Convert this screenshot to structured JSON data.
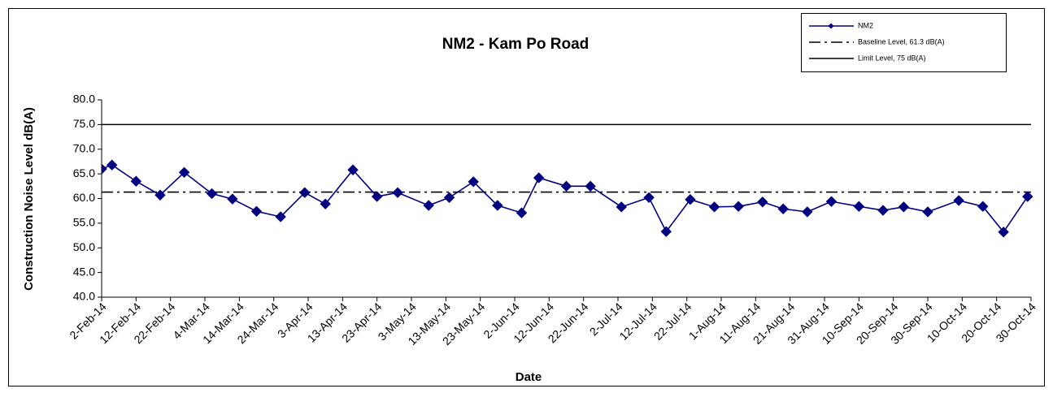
{
  "chart_data": {
    "type": "line",
    "title": "NM2 - Kam Po Road",
    "x_label": "Date",
    "y_label": "Construction Noise Level  dB(A)",
    "x": [
      "2014-02-02",
      "2014-02-05",
      "2014-02-12",
      "2014-02-19",
      "2014-02-26",
      "2014-03-06",
      "2014-03-12",
      "2014-03-19",
      "2014-03-26",
      "2014-04-02",
      "2014-04-08",
      "2014-04-16",
      "2014-04-23",
      "2014-04-29",
      "2014-05-08",
      "2014-05-14",
      "2014-05-21",
      "2014-05-28",
      "2014-06-04",
      "2014-06-09",
      "2014-06-17",
      "2014-06-24",
      "2014-07-03",
      "2014-07-11",
      "2014-07-16",
      "2014-07-23",
      "2014-07-30",
      "2014-08-06",
      "2014-08-13",
      "2014-08-19",
      "2014-08-26",
      "2014-09-02",
      "2014-09-10",
      "2014-09-17",
      "2014-09-23",
      "2014-09-30",
      "2014-10-09",
      "2014-10-16",
      "2014-10-22",
      "2014-10-29"
    ],
    "series": [
      {
        "name": "NM2",
        "color": "#000080",
        "marker": "diamond",
        "values": [
          66.0,
          66.8,
          63.5,
          60.7,
          65.3,
          61.0,
          59.9,
          57.4,
          56.3,
          61.2,
          58.9,
          65.8,
          60.4,
          61.2,
          58.6,
          60.2,
          63.4,
          58.6,
          57.1,
          64.2,
          62.5,
          62.5,
          58.3,
          60.2,
          53.3,
          59.8,
          58.3,
          58.4,
          59.3,
          57.9,
          57.3,
          59.4,
          58.4,
          57.6,
          58.3,
          57.3,
          59.6,
          58.4,
          53.2,
          60.4
        ]
      }
    ],
    "reference_lines": [
      {
        "name": "Baseline Level, 61.3 dB(A)",
        "value": 61.3,
        "color": "#000000",
        "style": "dashdot"
      },
      {
        "name": "Limit Level, 75 dB(A)",
        "value": 75,
        "color": "#000000",
        "style": "solid"
      }
    ],
    "xlim": [
      "2014-02-02",
      "2014-10-30"
    ],
    "xticks": [
      {
        "value": "2014-02-02",
        "label": "2-Feb-14"
      },
      {
        "value": "2014-02-12",
        "label": "12-Feb-14"
      },
      {
        "value": "2014-02-22",
        "label": "22-Feb-14"
      },
      {
        "value": "2014-03-04",
        "label": "4-Mar-14"
      },
      {
        "value": "2014-03-14",
        "label": "14-Mar-14"
      },
      {
        "value": "2014-03-24",
        "label": "24-Mar-14"
      },
      {
        "value": "2014-04-03",
        "label": "3-Apr-14"
      },
      {
        "value": "2014-04-13",
        "label": "13-Apr-14"
      },
      {
        "value": "2014-04-23",
        "label": "23-Apr-14"
      },
      {
        "value": "2014-05-03",
        "label": "3-May-14"
      },
      {
        "value": "2014-05-13",
        "label": "13-May-14"
      },
      {
        "value": "2014-05-23",
        "label": "23-May-14"
      },
      {
        "value": "2014-06-02",
        "label": "2-Jun-14"
      },
      {
        "value": "2014-06-12",
        "label": "12-Jun-14"
      },
      {
        "value": "2014-06-22",
        "label": "22-Jun-14"
      },
      {
        "value": "2014-07-02",
        "label": "2-Jul-14"
      },
      {
        "value": "2014-07-12",
        "label": "12-Jul-14"
      },
      {
        "value": "2014-07-22",
        "label": "22-Jul-14"
      },
      {
        "value": "2014-08-01",
        "label": "1-Aug-14"
      },
      {
        "value": "2014-08-11",
        "label": "11-Aug-14"
      },
      {
        "value": "2014-08-21",
        "label": "21-Aug-14"
      },
      {
        "value": "2014-08-31",
        "label": "31-Aug-14"
      },
      {
        "value": "2014-09-10",
        "label": "10-Sep-14"
      },
      {
        "value": "2014-09-20",
        "label": "20-Sep-14"
      },
      {
        "value": "2014-09-30",
        "label": "30-Sep-14"
      },
      {
        "value": "2014-10-10",
        "label": "10-Oct-14"
      },
      {
        "value": "2014-10-20",
        "label": "20-Oct-14"
      },
      {
        "value": "2014-10-30",
        "label": "30-Oct-14"
      }
    ],
    "ylim": [
      40,
      80
    ],
    "yticks": [
      {
        "value": 40,
        "label": "40.0"
      },
      {
        "value": 45,
        "label": "45.0"
      },
      {
        "value": 50,
        "label": "50.0"
      },
      {
        "value": 55,
        "label": "55.0"
      },
      {
        "value": 60,
        "label": "60.0"
      },
      {
        "value": 65,
        "label": "65.0"
      },
      {
        "value": 70,
        "label": "70.0"
      },
      {
        "value": 75,
        "label": "75.0"
      },
      {
        "value": 80,
        "label": "80.0"
      }
    ],
    "grid": false,
    "legend": "top-right"
  }
}
